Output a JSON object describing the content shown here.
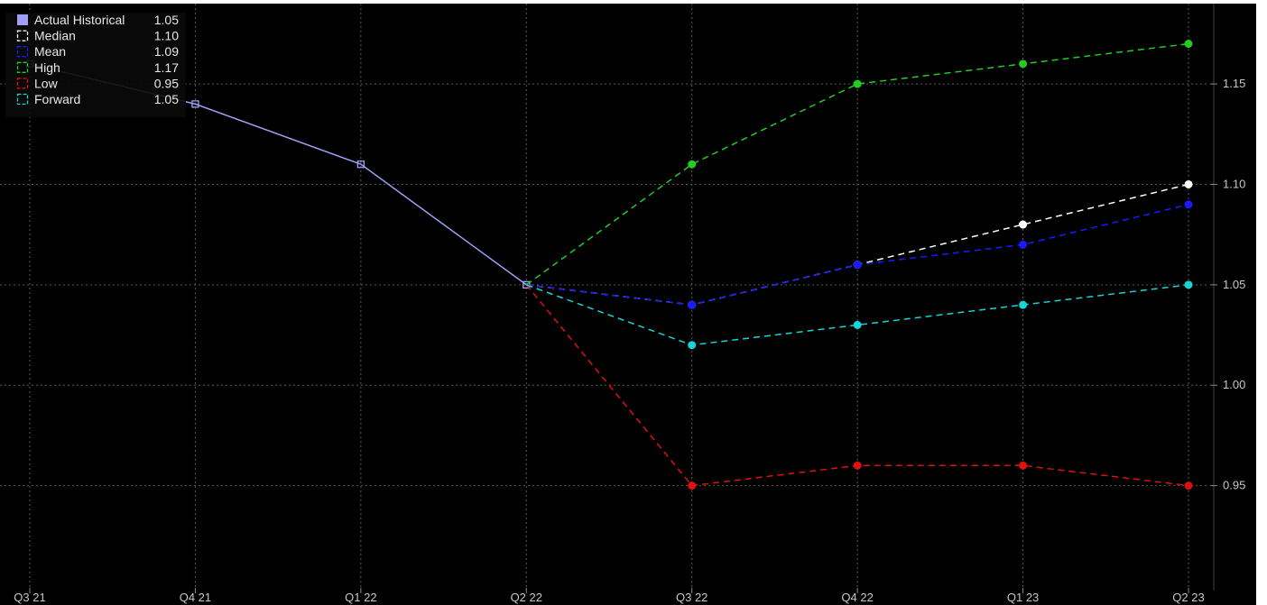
{
  "chart_data": {
    "type": "line",
    "x": [
      "Q3 21",
      "Q4 21",
      "Q1 22",
      "Q2 22",
      "Q3 22",
      "Q4 22",
      "Q1 23",
      "Q2 23"
    ],
    "ylim": [
      0.9,
      1.19
    ],
    "yticks": [
      "1.15",
      "1.10",
      "1.05",
      "1.00",
      "0.95"
    ],
    "ytick_values": [
      1.15,
      1.1,
      1.05,
      1.0,
      0.95
    ],
    "grid": true,
    "legend_position": "top-left",
    "series": [
      {
        "name": "Actual Historical",
        "last": "1.05",
        "color": "#9f9ff5",
        "style": "solid",
        "marker": "square-open",
        "values": [
          1.16,
          1.14,
          1.11,
          1.05,
          null,
          null,
          null,
          null
        ]
      },
      {
        "name": "Median",
        "last": "1.10",
        "color": "#ffffff",
        "style": "dashed",
        "marker": "circle",
        "values": [
          null,
          null,
          null,
          1.05,
          1.04,
          1.06,
          1.08,
          1.1
        ]
      },
      {
        "name": "Mean",
        "last": "1.09",
        "color": "#1a1aff",
        "style": "dashed",
        "marker": "circle",
        "values": [
          null,
          null,
          null,
          1.05,
          1.04,
          1.06,
          1.07,
          1.09
        ]
      },
      {
        "name": "High",
        "last": "1.17",
        "color": "#22cc22",
        "style": "dashed",
        "marker": "circle",
        "values": [
          null,
          null,
          null,
          1.05,
          1.11,
          1.15,
          1.16,
          1.17
        ]
      },
      {
        "name": "Low",
        "last": "0.95",
        "color": "#e01010",
        "style": "dashed",
        "marker": "circle",
        "values": [
          null,
          null,
          null,
          1.05,
          0.95,
          0.96,
          0.96,
          0.95
        ]
      },
      {
        "name": "Forward",
        "last": "1.05",
        "color": "#18d4d4",
        "style": "dashed",
        "marker": "circle",
        "values": [
          null,
          null,
          null,
          1.05,
          1.02,
          1.03,
          1.04,
          1.05
        ]
      }
    ]
  }
}
